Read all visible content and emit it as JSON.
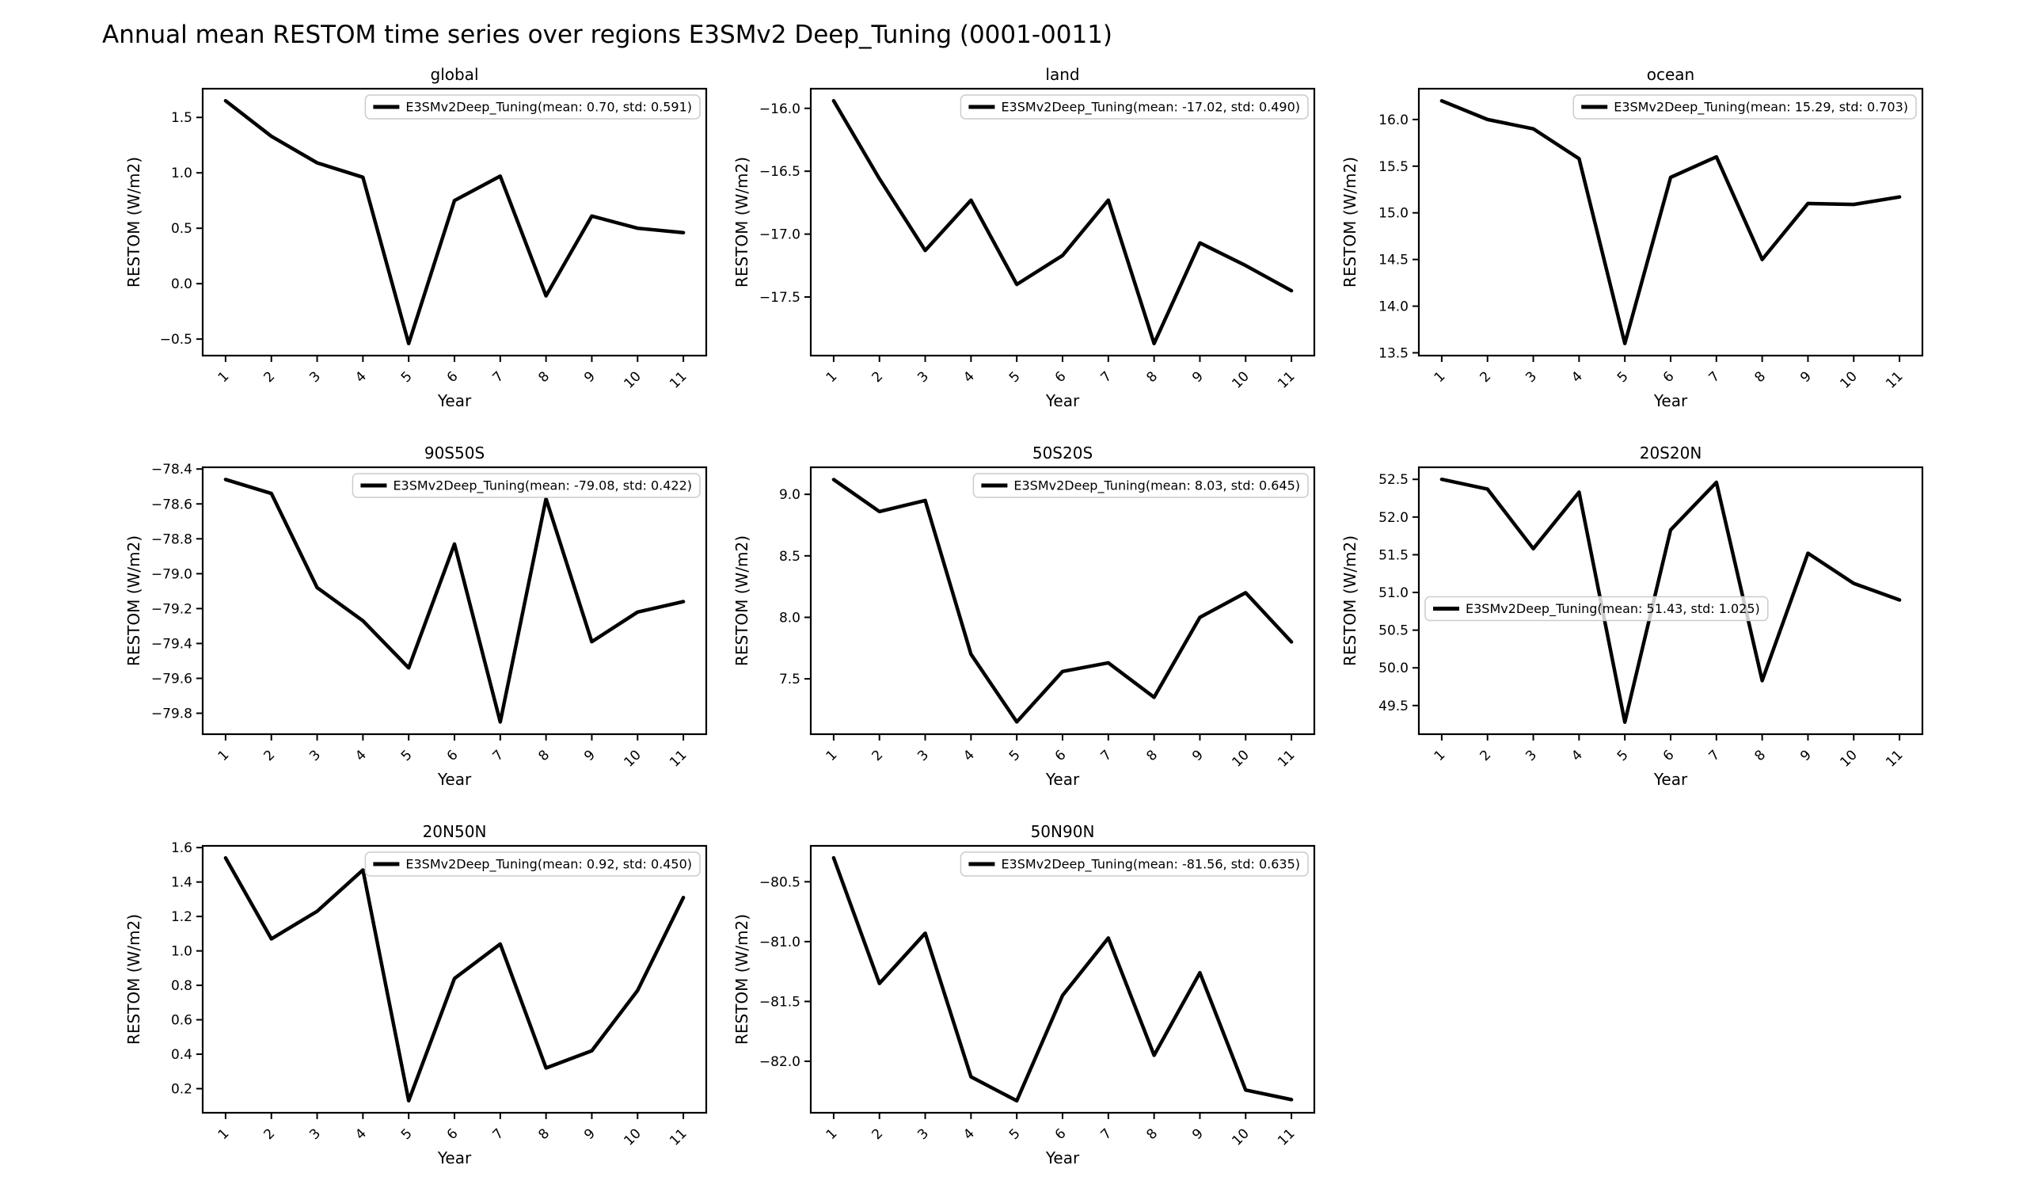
{
  "figure": {
    "title": "Annual mean RESTOM time series over regions E3SMv2 Deep_Tuning (0001-0011)",
    "background_color": "#ffffff",
    "line_color": "#000000",
    "axes_color": "#000000",
    "legend_border_color": "#cccccc",
    "legend_background": "rgba(255,255,255,0.8)"
  },
  "chart_data": [
    {
      "type": "line",
      "title": "global",
      "xlabel": "Year",
      "ylabel": "RESTOM (W/m2)",
      "legend": "E3SMv2Deep_Tuning(mean: 0.70, std: 0.591)",
      "legend_loc": "upper-right",
      "grid": false,
      "x": [
        1,
        2,
        3,
        4,
        5,
        6,
        7,
        8,
        9,
        10,
        11
      ],
      "xtick_labels": [
        "1",
        "2",
        "3",
        "4",
        "5",
        "6",
        "7",
        "8",
        "9",
        "10",
        "11"
      ],
      "values": [
        1.65,
        1.33,
        1.09,
        0.96,
        -0.54,
        0.75,
        0.97,
        -0.11,
        0.61,
        0.5,
        0.46
      ],
      "xlim": [
        0.5,
        11.5
      ],
      "ylim": [
        -0.649,
        1.759
      ],
      "yticks": [
        -0.5,
        0.0,
        0.5,
        1.0,
        1.5
      ],
      "ytick_labels": [
        "−0.5",
        "0.0",
        "0.5",
        "1.0",
        "1.5"
      ]
    },
    {
      "type": "line",
      "title": "land",
      "xlabel": "Year",
      "ylabel": "RESTOM (W/m2)",
      "legend": "E3SMv2Deep_Tuning(mean: -17.02, std: 0.490)",
      "legend_loc": "upper-right",
      "grid": false,
      "x": [
        1,
        2,
        3,
        4,
        5,
        6,
        7,
        8,
        9,
        10,
        11
      ],
      "xtick_labels": [
        "1",
        "2",
        "3",
        "4",
        "5",
        "6",
        "7",
        "8",
        "9",
        "10",
        "11"
      ],
      "values": [
        -15.94,
        -16.56,
        -17.13,
        -16.73,
        -17.4,
        -17.17,
        -16.73,
        -17.87,
        -17.07,
        -17.25,
        -17.45
      ],
      "xlim": [
        0.5,
        11.5
      ],
      "ylim": [
        -17.966,
        -15.844
      ],
      "yticks": [
        -17.5,
        -17.0,
        -16.5,
        -16.0
      ],
      "ytick_labels": [
        "−17.5",
        "−17.0",
        "−16.5",
        "−16.0"
      ]
    },
    {
      "type": "line",
      "title": "ocean",
      "xlabel": "Year",
      "ylabel": "RESTOM (W/m2)",
      "legend": "E3SMv2Deep_Tuning(mean: 15.29, std: 0.703)",
      "legend_loc": "upper-right",
      "grid": false,
      "x": [
        1,
        2,
        3,
        4,
        5,
        6,
        7,
        8,
        9,
        10,
        11
      ],
      "xtick_labels": [
        "1",
        "2",
        "3",
        "4",
        "5",
        "6",
        "7",
        "8",
        "9",
        "10",
        "11"
      ],
      "values": [
        16.2,
        16.0,
        15.9,
        15.58,
        13.6,
        15.38,
        15.6,
        14.5,
        15.1,
        15.09,
        15.17
      ],
      "xlim": [
        0.5,
        11.5
      ],
      "ylim": [
        13.47,
        16.33
      ],
      "yticks": [
        13.5,
        14.0,
        14.5,
        15.0,
        15.5,
        16.0
      ],
      "ytick_labels": [
        "13.5",
        "14.0",
        "14.5",
        "15.0",
        "15.5",
        "16.0"
      ]
    },
    {
      "type": "line",
      "title": "90S50S",
      "xlabel": "Year",
      "ylabel": "RESTOM (W/m2)",
      "legend": "E3SMv2Deep_Tuning(mean: -79.08, std: 0.422)",
      "legend_loc": "upper-right",
      "grid": false,
      "x": [
        1,
        2,
        3,
        4,
        5,
        6,
        7,
        8,
        9,
        10,
        11
      ],
      "xtick_labels": [
        "1",
        "2",
        "3",
        "4",
        "5",
        "6",
        "7",
        "8",
        "9",
        "10",
        "11"
      ],
      "values": [
        -78.46,
        -78.54,
        -79.08,
        -79.27,
        -79.54,
        -78.83,
        -79.85,
        -78.57,
        -79.39,
        -79.22,
        -79.16
      ],
      "xlim": [
        0.5,
        11.5
      ],
      "ylim": [
        -79.92,
        -78.39
      ],
      "yticks": [
        -79.8,
        -79.6,
        -79.4,
        -79.2,
        -79.0,
        -78.8,
        -78.6,
        -78.4
      ],
      "ytick_labels": [
        "−79.8",
        "−79.6",
        "−79.4",
        "−79.2",
        "−79.0",
        "−78.8",
        "−78.6",
        "−78.4"
      ]
    },
    {
      "type": "line",
      "title": "50S20S",
      "xlabel": "Year",
      "ylabel": "RESTOM (W/m2)",
      "legend": "E3SMv2Deep_Tuning(mean: 8.03, std: 0.645)",
      "legend_loc": "upper-right",
      "grid": false,
      "x": [
        1,
        2,
        3,
        4,
        5,
        6,
        7,
        8,
        9,
        10,
        11
      ],
      "xtick_labels": [
        "1",
        "2",
        "3",
        "4",
        "5",
        "6",
        "7",
        "8",
        "9",
        "10",
        "11"
      ],
      "values": [
        9.12,
        8.86,
        8.95,
        7.7,
        7.15,
        7.56,
        7.63,
        7.35,
        8.0,
        8.2,
        7.8
      ],
      "xlim": [
        0.5,
        11.5
      ],
      "ylim": [
        7.05,
        9.22
      ],
      "yticks": [
        7.5,
        8.0,
        8.5,
        9.0
      ],
      "ytick_labels": [
        "7.5",
        "8.0",
        "8.5",
        "9.0"
      ]
    },
    {
      "type": "line",
      "title": "20S20N",
      "xlabel": "Year",
      "ylabel": "RESTOM (W/m2)",
      "legend": "E3SMv2Deep_Tuning(mean: 51.43, std: 1.025)",
      "legend_loc": "center-left",
      "grid": false,
      "x": [
        1,
        2,
        3,
        4,
        5,
        6,
        7,
        8,
        9,
        10,
        11
      ],
      "xtick_labels": [
        "1",
        "2",
        "3",
        "4",
        "5",
        "6",
        "7",
        "8",
        "9",
        "10",
        "11"
      ],
      "values": [
        52.5,
        52.37,
        51.58,
        52.33,
        49.28,
        51.83,
        52.46,
        49.83,
        51.52,
        51.12,
        50.9
      ],
      "xlim": [
        0.5,
        11.5
      ],
      "ylim": [
        49.12,
        52.66
      ],
      "yticks": [
        49.5,
        50.0,
        50.5,
        51.0,
        51.5,
        52.0,
        52.5
      ],
      "ytick_labels": [
        "49.5",
        "50.0",
        "50.5",
        "51.0",
        "51.5",
        "52.0",
        "52.5"
      ]
    },
    {
      "type": "line",
      "title": "20N50N",
      "xlabel": "Year",
      "ylabel": "RESTOM (W/m2)",
      "legend": "E3SMv2Deep_Tuning(mean: 0.92, std: 0.450)",
      "legend_loc": "upper-right",
      "grid": false,
      "x": [
        1,
        2,
        3,
        4,
        5,
        6,
        7,
        8,
        9,
        10,
        11
      ],
      "xtick_labels": [
        "1",
        "2",
        "3",
        "4",
        "5",
        "6",
        "7",
        "8",
        "9",
        "10",
        "11"
      ],
      "values": [
        1.54,
        1.07,
        1.23,
        1.47,
        0.13,
        0.84,
        1.04,
        0.32,
        0.42,
        0.77,
        1.31
      ],
      "xlim": [
        0.5,
        11.5
      ],
      "ylim": [
        0.06,
        1.61
      ],
      "yticks": [
        0.2,
        0.4,
        0.6,
        0.8,
        1.0,
        1.2,
        1.4,
        1.6
      ],
      "ytick_labels": [
        "0.2",
        "0.4",
        "0.6",
        "0.8",
        "1.0",
        "1.2",
        "1.4",
        "1.6"
      ]
    },
    {
      "type": "line",
      "title": "50N90N",
      "xlabel": "Year",
      "ylabel": "RESTOM (W/m2)",
      "legend": "E3SMv2Deep_Tuning(mean: -81.56, std: 0.635)",
      "legend_loc": "upper-right",
      "grid": false,
      "x": [
        1,
        2,
        3,
        4,
        5,
        6,
        7,
        8,
        9,
        10,
        11
      ],
      "xtick_labels": [
        "1",
        "2",
        "3",
        "4",
        "5",
        "6",
        "7",
        "8",
        "9",
        "10",
        "11"
      ],
      "values": [
        -80.3,
        -81.35,
        -80.93,
        -82.13,
        -82.33,
        -81.45,
        -80.97,
        -81.95,
        -81.26,
        -82.24,
        -82.32
      ],
      "xlim": [
        0.5,
        11.5
      ],
      "ylim": [
        -82.43,
        -80.2
      ],
      "yticks": [
        -82.0,
        -81.5,
        -81.0,
        -80.5
      ],
      "ytick_labels": [
        "−82.0",
        "−81.5",
        "−81.0",
        "−80.5"
      ]
    }
  ]
}
